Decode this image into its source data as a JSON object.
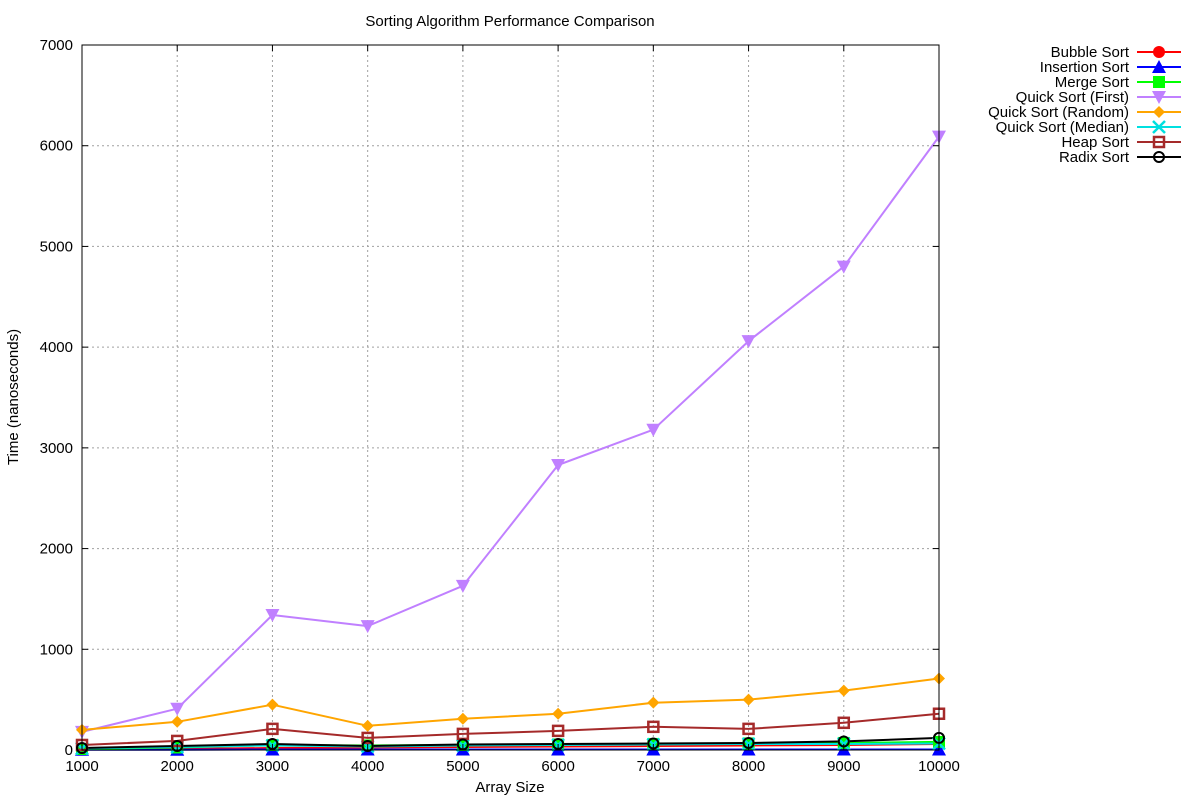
{
  "chart_data": {
    "type": "line",
    "title": "Sorting Algorithm Performance Comparison",
    "xlabel": "Array Size",
    "ylabel": "Time (nanoseconds)",
    "x": [
      1000,
      2000,
      3000,
      4000,
      5000,
      6000,
      7000,
      8000,
      9000,
      10000
    ],
    "xlim": [
      1000,
      10000
    ],
    "ylim": [
      0,
      7000
    ],
    "xticks": [
      1000,
      2000,
      3000,
      4000,
      5000,
      6000,
      7000,
      8000,
      9000,
      10000
    ],
    "yticks": [
      0,
      1000,
      2000,
      3000,
      4000,
      5000,
      6000,
      7000
    ],
    "grid": true,
    "legend_position": "top-right",
    "series": [
      {
        "name": "Bubble Sort",
        "color": "#ff0000",
        "marker": "circle-filled",
        "values": [
          5,
          10,
          20,
          25,
          30,
          35,
          40,
          45,
          50,
          60
        ]
      },
      {
        "name": "Insertion Sort",
        "color": "#0000ff",
        "marker": "triangle-up-filled",
        "values": [
          2,
          3,
          5,
          5,
          5,
          5,
          5,
          5,
          5,
          5
        ]
      },
      {
        "name": "Merge Sort",
        "color": "#00ff00",
        "marker": "square-filled",
        "values": [
          10,
          25,
          50,
          45,
          50,
          55,
          60,
          65,
          70,
          80
        ]
      },
      {
        "name": "Quick Sort (First)",
        "color": "#c080ff",
        "marker": "triangle-down-filled",
        "values": [
          180,
          410,
          1340,
          1230,
          1630,
          2830,
          3180,
          4060,
          4800,
          6090
        ]
      },
      {
        "name": "Quick Sort (Random)",
        "color": "#ffa500",
        "marker": "diamond-filled",
        "values": [
          200,
          280,
          450,
          240,
          310,
          360,
          470,
          500,
          590,
          710
        ]
      },
      {
        "name": "Quick Sort (Median)",
        "color": "#00e0e0",
        "marker": "x",
        "values": [
          15,
          30,
          45,
          35,
          45,
          50,
          55,
          60,
          60,
          65
        ]
      },
      {
        "name": "Heap Sort",
        "color": "#a52a2a",
        "marker": "square-open",
        "values": [
          50,
          90,
          210,
          120,
          160,
          190,
          230,
          210,
          270,
          360
        ]
      },
      {
        "name": "Radix Sort",
        "color": "#000000",
        "marker": "circle-open",
        "values": [
          20,
          40,
          60,
          40,
          55,
          60,
          65,
          70,
          85,
          120
        ]
      }
    ]
  }
}
